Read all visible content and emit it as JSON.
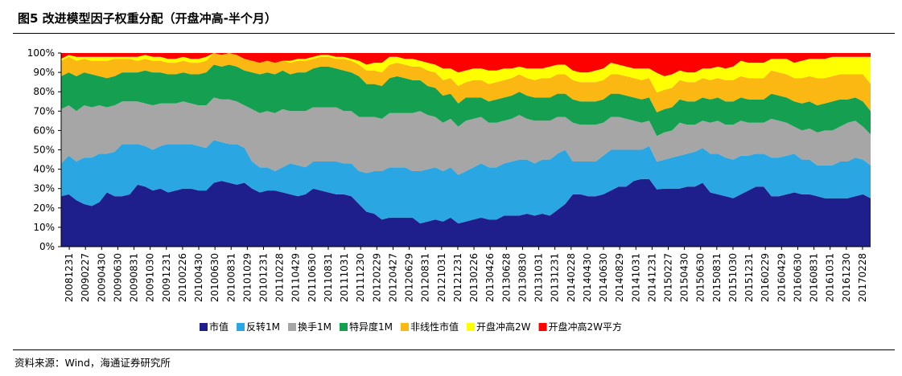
{
  "header": {
    "title": "图5  改进模型因子权重分配（开盘冲高-半个月）"
  },
  "footer": {
    "source": "资料来源：Wind，海通证券研究所"
  },
  "chart_data": {
    "type": "area",
    "stacked": true,
    "normalized": true,
    "title": "",
    "ylim": [
      0,
      100
    ],
    "yticks": [
      "0%",
      "10%",
      "20%",
      "30%",
      "40%",
      "50%",
      "60%",
      "70%",
      "80%",
      "90%",
      "100%"
    ],
    "grid": false,
    "legend_position": "bottom",
    "xtick_labels": [
      "20081231",
      "20090227",
      "20090430",
      "20090630",
      "20090831",
      "20091030",
      "20091231",
      "20100226",
      "20100430",
      "20100630",
      "20100831",
      "20101029",
      "20101231",
      "20110228",
      "20110429",
      "20110630",
      "20110831",
      "20111031",
      "20111230",
      "20120229",
      "20120427",
      "20120629",
      "20120831",
      "20121031",
      "20121231",
      "20130226",
      "20130426",
      "20130628",
      "20130830",
      "20131031",
      "20131231",
      "20140228",
      "20140430",
      "20140630",
      "20140829",
      "20141031",
      "20141231",
      "20150227",
      "20150430",
      "20150630",
      "20150831",
      "20151030",
      "20151231",
      "20160229",
      "20160429",
      "20160630",
      "20160831",
      "20161031",
      "20161230",
      "20170228"
    ],
    "series": [
      {
        "name": "市值",
        "color": "#1e1e8c",
        "values": [
          26,
          27,
          24,
          22,
          21,
          23,
          28,
          26,
          26,
          27,
          32,
          31,
          29,
          30,
          28,
          29,
          30,
          30,
          29,
          29,
          33,
          34,
          33,
          32,
          33,
          30,
          28,
          29,
          29,
          28,
          27,
          26,
          27,
          30,
          29,
          28,
          27,
          27,
          26,
          22,
          18,
          17,
          14,
          15,
          15,
          15,
          15,
          12,
          13,
          14,
          13,
          15,
          12,
          13,
          14,
          15,
          14,
          14,
          16,
          16,
          16,
          17,
          16,
          17,
          16,
          19,
          22,
          27,
          27,
          26,
          26,
          27,
          29,
          31,
          31,
          34,
          35,
          35,
          29,
          30,
          30,
          30,
          31,
          31,
          33,
          28,
          27,
          26,
          25,
          27,
          29,
          31,
          31,
          26,
          26,
          27,
          28,
          27,
          27,
          26,
          25,
          25,
          25,
          25,
          26,
          27,
          25
        ]
      },
      {
        "name": "反转1M",
        "color": "#2aa7e2",
        "values": [
          17,
          20,
          20,
          24,
          25,
          25,
          20,
          23,
          27,
          26,
          21,
          21,
          21,
          22,
          25,
          24,
          23,
          23,
          23,
          22,
          22,
          20,
          20,
          21,
          18,
          14,
          13,
          12,
          10,
          13,
          16,
          16,
          14,
          14,
          15,
          16,
          17,
          16,
          17,
          17,
          20,
          22,
          25,
          26,
          26,
          26,
          24,
          27,
          27,
          27,
          26,
          26,
          25,
          26,
          27,
          28,
          27,
          27,
          27,
          28,
          29,
          28,
          27,
          28,
          29,
          29,
          28,
          17,
          17,
          18,
          18,
          20,
          21,
          19,
          19,
          16,
          15,
          17,
          14,
          15,
          16,
          17,
          17,
          18,
          18,
          20,
          21,
          20,
          20,
          20,
          18,
          17,
          17,
          20,
          20,
          20,
          20,
          18,
          18,
          16,
          17,
          17,
          19,
          19,
          20,
          18,
          17
        ]
      },
      {
        "name": "换手1M",
        "color": "#a6a6a6",
        "values": [
          28,
          26,
          26,
          27,
          26,
          25,
          24,
          24,
          22,
          22,
          22,
          22,
          23,
          22,
          21,
          21,
          22,
          21,
          21,
          22,
          22,
          22,
          23,
          22,
          22,
          27,
          28,
          29,
          30,
          30,
          27,
          28,
          29,
          28,
          28,
          28,
          28,
          27,
          27,
          28,
          29,
          28,
          27,
          28,
          28,
          28,
          30,
          31,
          28,
          26,
          25,
          25,
          25,
          26,
          25,
          24,
          23,
          23,
          22,
          22,
          23,
          21,
          22,
          20,
          20,
          19,
          17,
          20,
          19,
          19,
          19,
          17,
          17,
          17,
          16,
          15,
          14,
          13,
          13,
          14,
          14,
          17,
          15,
          14,
          14,
          16,
          17,
          17,
          18,
          18,
          17,
          16,
          16,
          20,
          19,
          17,
          14,
          15,
          16,
          17,
          18,
          18,
          18,
          20,
          19,
          17,
          16
        ]
      },
      {
        "name": "特异度1M",
        "color": "#14a050",
        "values": [
          17,
          17,
          18,
          17,
          17,
          15,
          15,
          15,
          15,
          15,
          15,
          17,
          17,
          16,
          15,
          15,
          15,
          15,
          16,
          17,
          17,
          17,
          18,
          18,
          18,
          19,
          20,
          20,
          20,
          20,
          19,
          20,
          20,
          20,
          21,
          21,
          20,
          21,
          20,
          21,
          17,
          17,
          17,
          18,
          19,
          18,
          17,
          16,
          15,
          15,
          14,
          13,
          12,
          12,
          11,
          10,
          11,
          12,
          12,
          12,
          12,
          12,
          12,
          12,
          12,
          12,
          12,
          12,
          12,
          12,
          12,
          12,
          12,
          12,
          12,
          12,
          12,
          12,
          12,
          12,
          12,
          12,
          12,
          12,
          12,
          12,
          12,
          12,
          12,
          12,
          12,
          12,
          12,
          13,
          13,
          13,
          13,
          14,
          14,
          14,
          14,
          15,
          14,
          12,
          12,
          13,
          12
        ]
      },
      {
        "name": "非线性市值",
        "color": "#fbb812",
        "values": [
          8,
          8,
          8,
          7,
          7,
          8,
          9,
          9,
          7,
          7,
          6,
          6,
          6,
          6,
          6,
          6,
          6,
          6,
          6,
          6,
          6,
          6,
          6,
          6,
          6,
          6,
          6,
          6,
          6,
          5,
          6,
          6,
          6,
          5,
          5,
          5,
          5,
          6,
          6,
          6,
          7,
          7,
          7,
          7,
          7,
          7,
          7,
          7,
          8,
          8,
          8,
          8,
          9,
          8,
          9,
          9,
          9,
          9,
          9,
          9,
          9,
          9,
          9,
          10,
          10,
          10,
          10,
          10,
          10,
          10,
          10,
          10,
          10,
          10,
          10,
          10,
          10,
          10,
          10,
          10,
          10,
          10,
          10,
          10,
          10,
          10,
          10,
          11,
          11,
          11,
          11,
          11,
          11,
          12,
          12,
          12,
          12,
          13,
          13,
          14,
          13,
          13,
          13,
          13,
          12,
          14,
          14
        ]
      },
      {
        "name": "开盘冲高2W",
        "color": "#ffff00",
        "values": [
          1,
          1,
          2,
          1,
          2,
          2,
          2,
          1,
          1,
          1,
          2,
          2,
          2,
          2,
          2,
          2,
          2,
          2,
          2,
          2,
          0,
          0,
          0,
          0,
          0,
          0,
          0,
          0,
          0,
          0,
          1,
          1,
          1,
          1,
          1,
          1,
          1,
          1,
          1,
          2,
          3,
          4,
          5,
          4,
          3,
          3,
          4,
          3,
          4,
          4,
          6,
          5,
          7,
          6,
          6,
          6,
          7,
          6,
          6,
          5,
          4,
          5,
          6,
          5,
          6,
          5,
          5,
          5,
          5,
          5,
          6,
          6,
          6,
          5,
          5,
          5,
          6,
          5,
          10,
          7,
          7,
          5,
          5,
          5,
          5,
          6,
          6,
          6,
          7,
          8,
          8,
          8,
          8,
          6,
          7,
          8,
          8,
          9,
          9,
          10,
          10,
          10,
          9,
          9,
          9,
          9,
          14
        ]
      },
      {
        "name": "开盘冲高2W平方",
        "color": "#ff0000",
        "values": [
          3,
          1,
          2,
          2,
          2,
          2,
          2,
          2,
          2,
          2,
          2,
          1,
          2,
          2,
          3,
          3,
          2,
          3,
          3,
          2,
          0,
          1,
          0,
          1,
          3,
          4,
          5,
          4,
          5,
          4,
          4,
          3,
          3,
          2,
          1,
          1,
          2,
          2,
          3,
          4,
          6,
          5,
          5,
          2,
          2,
          3,
          3,
          4,
          5,
          6,
          8,
          8,
          10,
          9,
          8,
          8,
          9,
          9,
          8,
          8,
          7,
          8,
          8,
          8,
          7,
          6,
          6,
          9,
          10,
          10,
          9,
          8,
          5,
          6,
          7,
          8,
          8,
          8,
          10,
          12,
          11,
          9,
          10,
          10,
          8,
          8,
          7,
          8,
          7,
          4,
          5,
          5,
          5,
          3,
          3,
          3,
          5,
          4,
          3,
          3,
          3,
          2,
          2,
          2,
          2,
          2,
          2
        ]
      }
    ]
  }
}
